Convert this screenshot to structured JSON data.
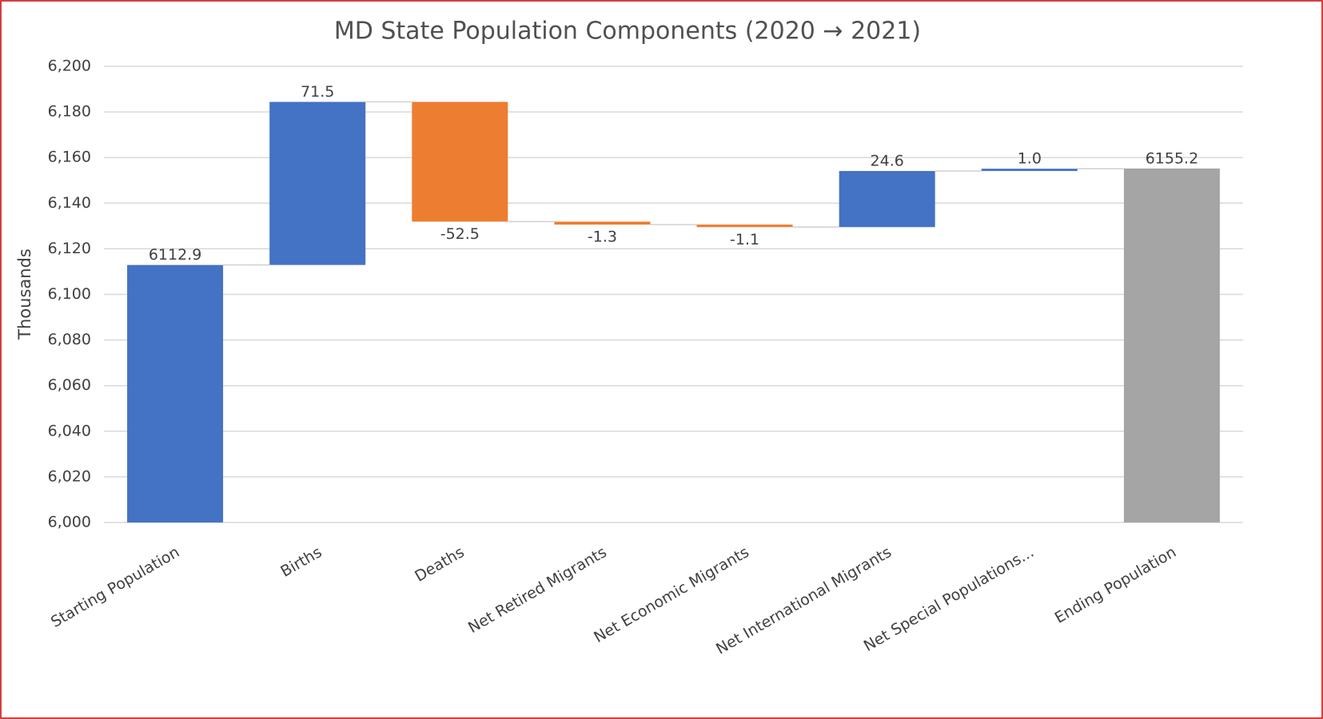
{
  "chart_data": {
    "type": "waterfall",
    "title": "MD State Population Components (2020 → 2021)",
    "ylabel": "Thousands",
    "categories": [
      "Starting Population",
      "Births",
      "Deaths",
      "Net Retired Migrants",
      "Net Economic Migrants",
      "Net International Migrants",
      "Net Special Populations...",
      "Ending Population"
    ],
    "values": [
      6112.9,
      71.5,
      -52.5,
      -1.3,
      -1.1,
      24.6,
      1.0,
      6155.2
    ],
    "value_labels": [
      "6112.9",
      "71.5",
      "-52.5",
      "-1.3",
      "-1.1",
      "24.6",
      "1.0",
      "6155.2"
    ],
    "colors": [
      "#4472c4",
      "#4472c4",
      "#ed7d31",
      "#ed7d31",
      "#ed7d31",
      "#4472c4",
      "#4472c4",
      "#a5a5a5"
    ],
    "ylim": [
      6000,
      6200
    ],
    "yticks": [
      {
        "value": 6000,
        "label": "6,000"
      },
      {
        "value": 6020,
        "label": "6,020"
      },
      {
        "value": 6040,
        "label": "6,040"
      },
      {
        "value": 6060,
        "label": "6,060"
      },
      {
        "value": 6080,
        "label": "6,080"
      },
      {
        "value": 6100,
        "label": "6,100"
      },
      {
        "value": 6120,
        "label": "6,120"
      },
      {
        "value": 6140,
        "label": "6,140"
      },
      {
        "value": 6160,
        "label": "6,160"
      },
      {
        "value": 6180,
        "label": "6,180"
      },
      {
        "value": 6200,
        "label": "6,200"
      }
    ],
    "grid": true
  }
}
